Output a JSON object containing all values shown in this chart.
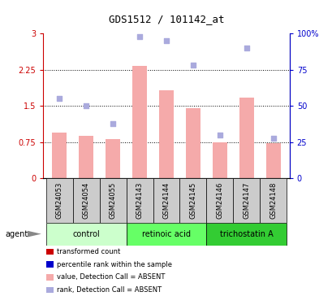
{
  "title": "GDS1512 / 101142_at",
  "samples": [
    "GSM24053",
    "GSM24054",
    "GSM24055",
    "GSM24143",
    "GSM24144",
    "GSM24145",
    "GSM24146",
    "GSM24147",
    "GSM24148"
  ],
  "bar_values": [
    0.95,
    0.88,
    0.82,
    2.33,
    1.82,
    1.46,
    0.74,
    1.67,
    0.73
  ],
  "dot_values": [
    55,
    50,
    38,
    98,
    95,
    78,
    30,
    90,
    28
  ],
  "ylim_left": [
    0,
    3
  ],
  "ylim_right": [
    0,
    100
  ],
  "yticks_left": [
    0,
    0.75,
    1.5,
    2.25,
    3
  ],
  "ytick_labels_left": [
    "0",
    "0.75",
    "1.5",
    "2.25",
    "3"
  ],
  "yticks_right": [
    0,
    25,
    50,
    75,
    100
  ],
  "ytick_labels_right": [
    "0",
    "25",
    "50",
    "75",
    "100%"
  ],
  "bar_color": "#f5aaaa",
  "dot_color": "#aaaadd",
  "groups": [
    {
      "label": "control",
      "start": 0,
      "end": 3
    },
    {
      "label": "retinoic acid",
      "start": 3,
      "end": 6
    },
    {
      "label": "trichostatin A",
      "start": 6,
      "end": 9
    }
  ],
  "group_colors": [
    "#ccffcc",
    "#66ff66",
    "#33cc33"
  ],
  "agent_label": "agent",
  "legend_items": [
    {
      "color": "#cc0000",
      "label": "transformed count"
    },
    {
      "color": "#0000cc",
      "label": "percentile rank within the sample"
    },
    {
      "color": "#f5aaaa",
      "label": "value, Detection Call = ABSENT"
    },
    {
      "color": "#aaaadd",
      "label": "rank, Detection Call = ABSENT"
    }
  ],
  "left_axis_color": "#cc0000",
  "right_axis_color": "#0000cc",
  "background_cells": "#cccccc",
  "title_fontsize": 9,
  "tick_fontsize": 7,
  "label_fontsize": 6,
  "group_fontsize": 7
}
